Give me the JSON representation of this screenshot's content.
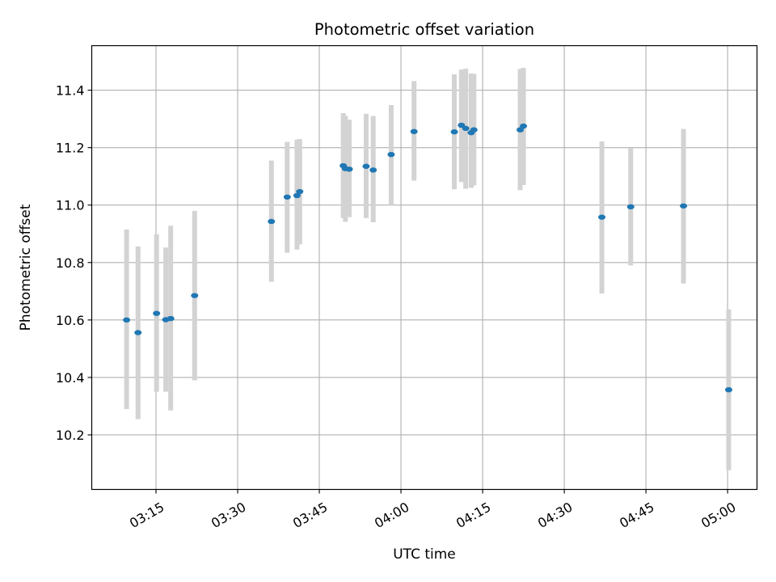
{
  "chart_data": {
    "type": "scatter",
    "title": "Photometric offset variation",
    "xlabel": "UTC time",
    "ylabel": "Photometric offset",
    "x_ticks": [
      "03:15",
      "03:30",
      "03:45",
      "04:00",
      "04:15",
      "04:30",
      "04:45",
      "05:00"
    ],
    "y_ticks": [
      "10.2",
      "10.4",
      "10.6",
      "10.8",
      "11.0",
      "11.2",
      "11.4"
    ],
    "xlim": [
      "03:03:12",
      "05:05:24"
    ],
    "ylim": [
      10.01,
      11.555
    ],
    "grid": true,
    "point_color": "#1f77b4",
    "errorbar_color": "#d3d3d3",
    "points": [
      {
        "x": "03:09:36",
        "y": 10.6,
        "ylow": 10.29,
        "yhigh": 10.915
      },
      {
        "x": "03:11:42",
        "y": 10.556,
        "ylow": 10.255,
        "yhigh": 10.856
      },
      {
        "x": "03:15:06",
        "y": 10.623,
        "ylow": 10.35,
        "yhigh": 10.898
      },
      {
        "x": "03:16:48",
        "y": 10.601,
        "ylow": 10.35,
        "yhigh": 10.852
      },
      {
        "x": "03:17:42",
        "y": 10.605,
        "ylow": 10.285,
        "yhigh": 10.928
      },
      {
        "x": "03:22:06",
        "y": 10.685,
        "ylow": 10.39,
        "yhigh": 10.98
      },
      {
        "x": "03:36:12",
        "y": 10.943,
        "ylow": 10.733,
        "yhigh": 11.155
      },
      {
        "x": "03:39:06",
        "y": 11.028,
        "ylow": 10.834,
        "yhigh": 11.22
      },
      {
        "x": "03:40:54",
        "y": 11.033,
        "ylow": 10.845,
        "yhigh": 11.228
      },
      {
        "x": "03:41:24",
        "y": 11.047,
        "ylow": 10.863,
        "yhigh": 11.23
      },
      {
        "x": "03:49:24",
        "y": 11.137,
        "ylow": 10.955,
        "yhigh": 11.32
      },
      {
        "x": "03:49:48",
        "y": 11.127,
        "ylow": 10.942,
        "yhigh": 11.31
      },
      {
        "x": "03:50:30",
        "y": 11.125,
        "ylow": 10.958,
        "yhigh": 11.297
      },
      {
        "x": "03:53:36",
        "y": 11.135,
        "ylow": 10.955,
        "yhigh": 11.318
      },
      {
        "x": "03:54:54",
        "y": 11.122,
        "ylow": 10.94,
        "yhigh": 11.31
      },
      {
        "x": "03:58:12",
        "y": 11.176,
        "ylow": 11.0,
        "yhigh": 11.348
      },
      {
        "x": "04:02:24",
        "y": 11.256,
        "ylow": 11.085,
        "yhigh": 11.432
      },
      {
        "x": "04:09:48",
        "y": 11.255,
        "ylow": 11.055,
        "yhigh": 11.455
      },
      {
        "x": "04:11:06",
        "y": 11.278,
        "ylow": 11.08,
        "yhigh": 11.472
      },
      {
        "x": "04:11:54",
        "y": 11.267,
        "ylow": 11.057,
        "yhigh": 11.475
      },
      {
        "x": "04:12:54",
        "y": 11.252,
        "ylow": 11.06,
        "yhigh": 11.458
      },
      {
        "x": "04:13:24",
        "y": 11.262,
        "ylow": 11.068,
        "yhigh": 11.457
      },
      {
        "x": "04:21:54",
        "y": 11.262,
        "ylow": 11.052,
        "yhigh": 11.474
      },
      {
        "x": "04:22:30",
        "y": 11.275,
        "ylow": 11.07,
        "yhigh": 11.478
      },
      {
        "x": "04:36:54",
        "y": 10.958,
        "ylow": 10.692,
        "yhigh": 11.222
      },
      {
        "x": "04:42:12",
        "y": 10.994,
        "ylow": 10.79,
        "yhigh": 11.198
      },
      {
        "x": "04:51:54",
        "y": 10.997,
        "ylow": 10.727,
        "yhigh": 11.265
      },
      {
        "x": "05:00:12",
        "y": 10.357,
        "ylow": 10.077,
        "yhigh": 10.637
      }
    ]
  }
}
